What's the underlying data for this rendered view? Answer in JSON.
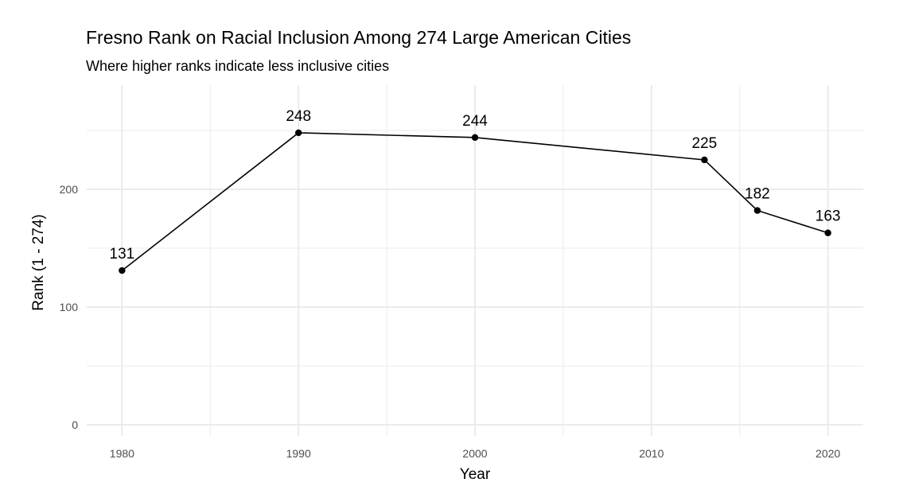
{
  "chart_data": {
    "type": "line",
    "title": "Fresno Rank on Racial Inclusion Among 274 Large American Cities",
    "subtitle": "Where higher ranks indicate less inclusive cities",
    "xlabel": "Year",
    "ylabel": "Rank (1 - 274)",
    "x": [
      1980,
      1990,
      2000,
      2013,
      2016,
      2020
    ],
    "values": [
      131,
      248,
      244,
      225,
      182,
      163
    ],
    "data_labels": [
      "131",
      "248",
      "244",
      "225",
      "182",
      "163"
    ],
    "xticks": [
      "1980",
      "1990",
      "2000",
      "2010",
      "2020"
    ],
    "yticks": [
      "0",
      "100",
      "200"
    ],
    "xlim": [
      1978,
      2022
    ],
    "ylim": [
      -9.5,
      288.5
    ],
    "grid": true,
    "line_color": "#000000",
    "grid_color": "#ebebeb"
  }
}
